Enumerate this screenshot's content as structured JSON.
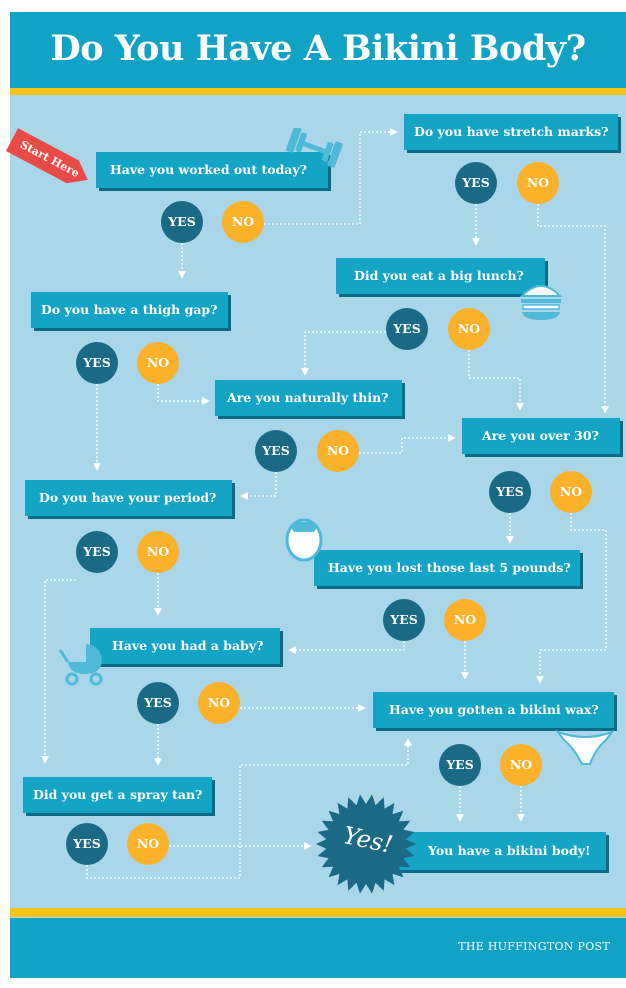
{
  "title": "Do You Have A Bikini Body?",
  "start_label": "Start Here",
  "yes_label": "YES",
  "no_label": "NO",
  "questions": [
    {
      "text": "Have you worked out today?"
    },
    {
      "text": "Do you have stretch marks?"
    },
    {
      "text": "Did you eat a big lunch?"
    },
    {
      "text": "Do you have a thigh gap?"
    },
    {
      "text": "Are you naturally thin?"
    },
    {
      "text": "Are you over 30?"
    },
    {
      "text": "Do you have your period?"
    },
    {
      "text": "Have you lost those last 5 pounds?"
    },
    {
      "text": "Have you had a baby?"
    },
    {
      "text": "Have you gotten a bikini wax?"
    },
    {
      "text": "Did you get a spray tan?"
    }
  ],
  "final": {
    "burst": "Yes!",
    "text": "You have a bikini body!"
  },
  "footer": {
    "credit": "THE HUFFINGTON POST"
  },
  "colors": {
    "header": "#11a3c6",
    "background": "#a9d6e8",
    "yes": "#1b6a85",
    "no": "#fbb22a",
    "accent": "#f5c515",
    "start": "#e84a45"
  }
}
